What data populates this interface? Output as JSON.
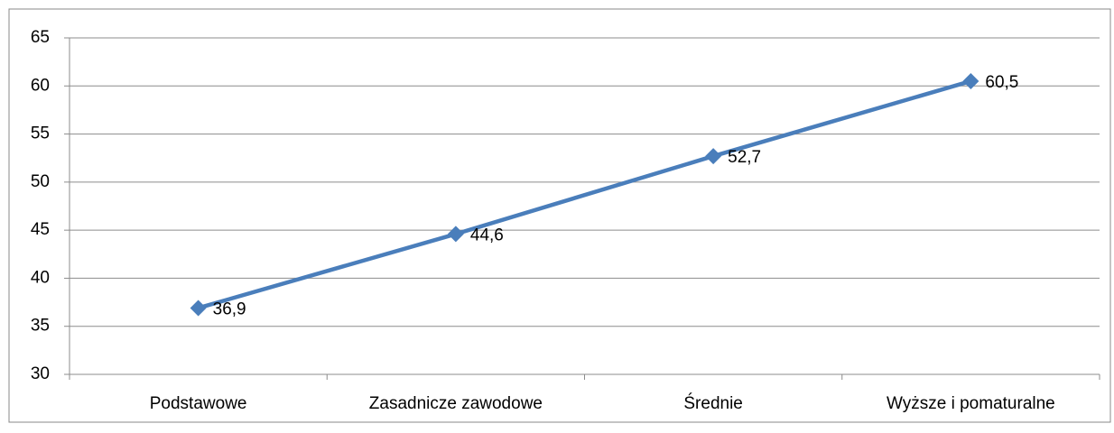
{
  "chart_data": {
    "type": "line",
    "categories": [
      "Podstawowe",
      "Zasadnicze zawodowe",
      "Średnie",
      "Wyższe i pomaturalne"
    ],
    "values": [
      36.9,
      44.6,
      52.7,
      60.5
    ],
    "value_labels": [
      "36,9",
      "44,6",
      "52,7",
      "60,5"
    ],
    "color": "#4a7ebb",
    "ylim": [
      30,
      65
    ],
    "yticks": [
      30,
      35,
      40,
      45,
      50,
      55,
      60,
      65
    ],
    "grid": true
  }
}
